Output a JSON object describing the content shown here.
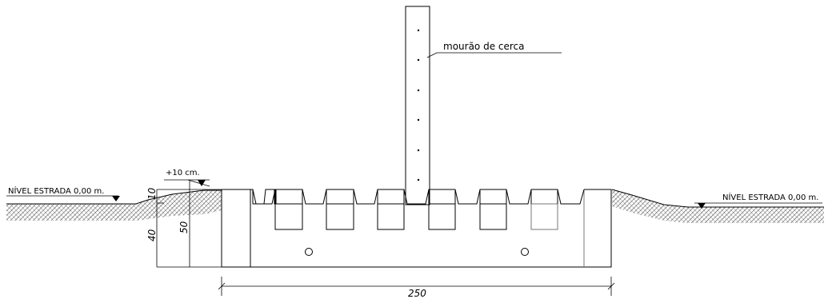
{
  "labels": {
    "level_left": "NÍVEL ESTRADA 0,00 m.",
    "level_right": "NÍVEL ESTRADA 0,00 m.",
    "raise": "+10 cm.",
    "fence_post": "mourão de cerca",
    "dim_width": "250",
    "dim_10": "10",
    "dim_40": "40",
    "dim_50": "50"
  },
  "colors": {
    "line": "#000000",
    "hatch": "#444444",
    "background": "#ffffff"
  }
}
